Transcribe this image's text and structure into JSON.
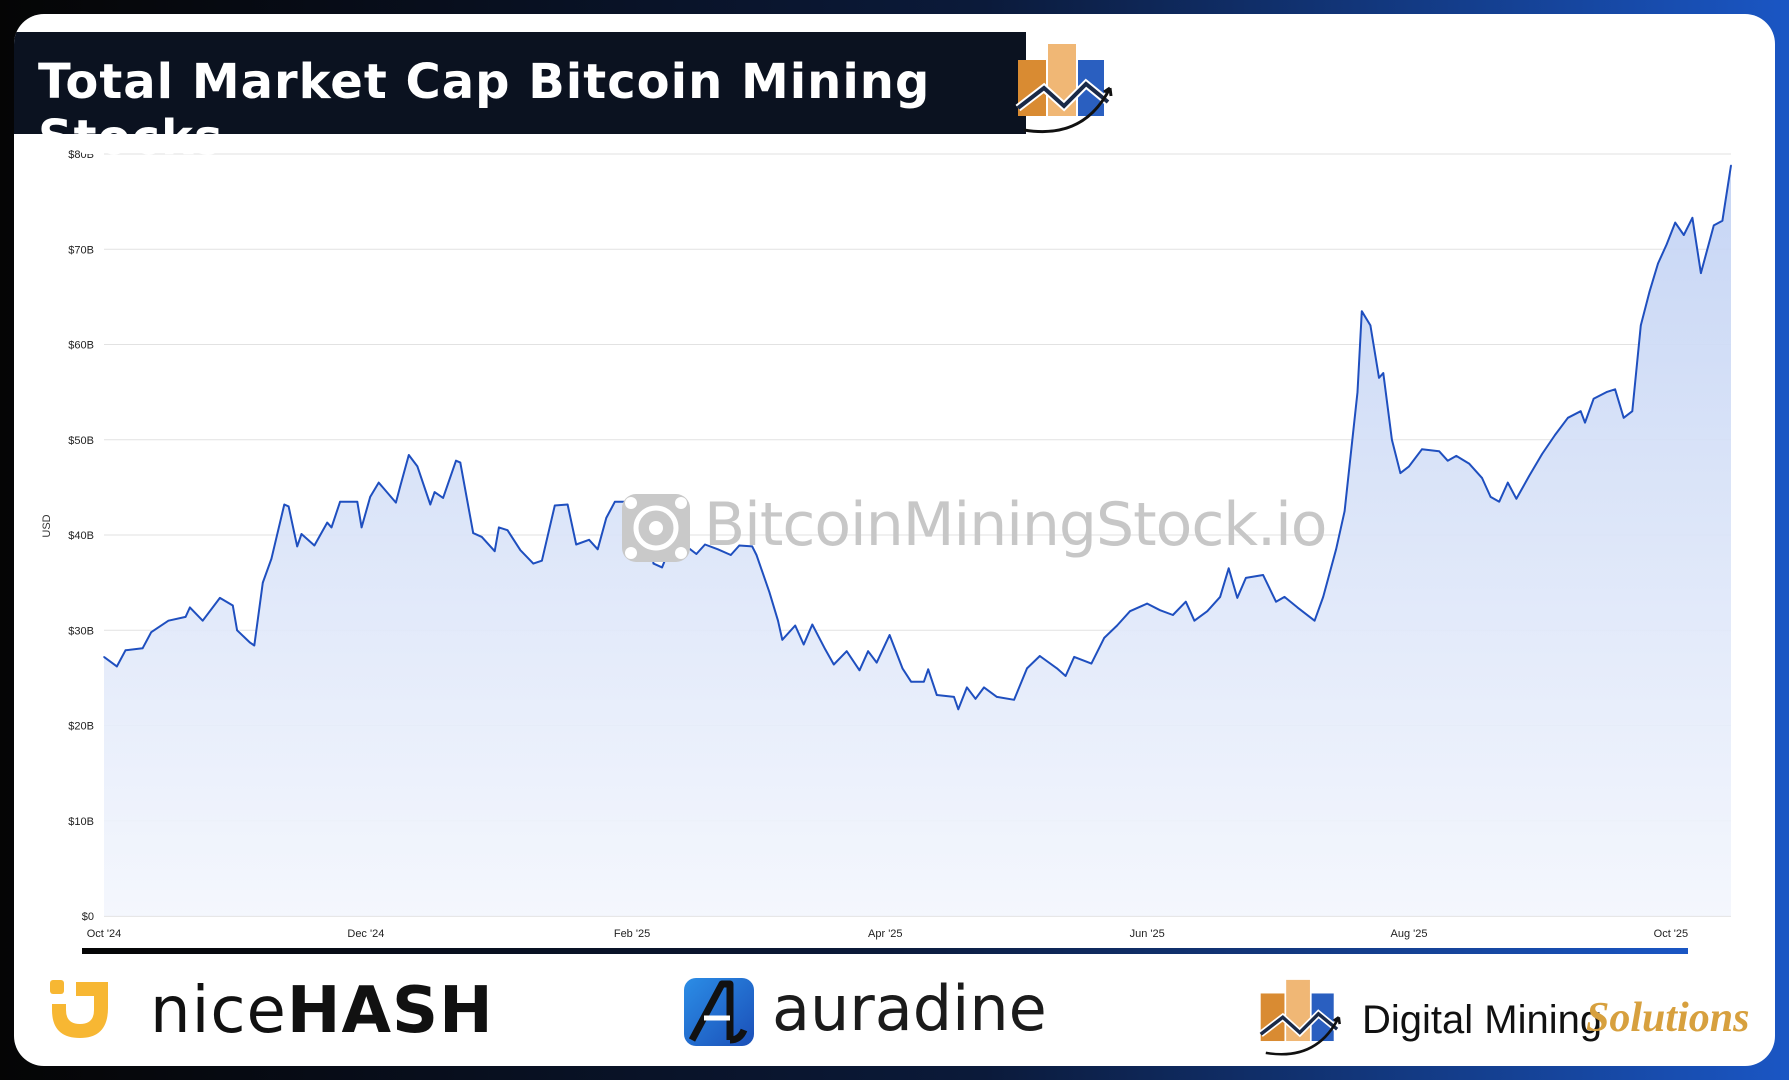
{
  "title": "Total Market Cap Bitcoin Mining Stocks",
  "watermark": "BitcoinMiningStock.io",
  "sponsors": {
    "nicehash_light": "nice",
    "nicehash_bold": "HASH",
    "auradine": "auradine",
    "dms_main": "Digital Mining",
    "dms_accent": "Solutions"
  },
  "colors": {
    "line": "#1f4fbf",
    "fill_top": "#c7d6f5",
    "grid": "#e2e2e2",
    "accent_orange": "#e09a3e",
    "accent_blue": "#2e64c8"
  },
  "chart_data": {
    "type": "area",
    "ylabel": "USD",
    "ylim": [
      0,
      80
    ],
    "yticks": [
      {
        "v": 0,
        "label": "$0"
      },
      {
        "v": 10,
        "label": "$10B"
      },
      {
        "v": 20,
        "label": "$20B"
      },
      {
        "v": 30,
        "label": "$30B"
      },
      {
        "v": 40,
        "label": "$40B"
      },
      {
        "v": 50,
        "label": "$50B"
      },
      {
        "v": 60,
        "label": "$60B"
      },
      {
        "v": 70,
        "label": "$70B"
      },
      {
        "v": 80,
        "label": "$80B"
      }
    ],
    "xticks": [
      {
        "date": "2024-10-01",
        "label": "Oct '24"
      },
      {
        "date": "2024-12-01",
        "label": "Dec '24"
      },
      {
        "date": "2025-02-01",
        "label": "Feb '25"
      },
      {
        "date": "2025-04-01",
        "label": "Apr '25"
      },
      {
        "date": "2025-06-01",
        "label": "Jun '25"
      },
      {
        "date": "2025-08-01",
        "label": "Aug '25"
      },
      {
        "date": "2025-10-01",
        "label": "Oct '25"
      }
    ],
    "xlim": [
      "2024-10-01",
      "2025-10-01"
    ],
    "grid": true,
    "series": [
      {
        "points": [
          [
            "2024-10-01",
            27.2
          ],
          [
            "2024-10-04",
            26.2
          ],
          [
            "2024-10-06",
            27.9
          ],
          [
            "2024-10-10",
            28.1
          ],
          [
            "2024-10-12",
            29.8
          ],
          [
            "2024-10-16",
            31.0
          ],
          [
            "2024-10-20",
            31.4
          ],
          [
            "2024-10-21",
            32.4
          ],
          [
            "2024-10-24",
            31.0
          ],
          [
            "2024-10-28",
            33.4
          ],
          [
            "2024-10-31",
            32.6
          ],
          [
            "2024-11-01",
            30.0
          ],
          [
            "2024-11-04",
            28.7
          ],
          [
            "2024-11-05",
            28.4
          ],
          [
            "2024-11-07",
            35.0
          ],
          [
            "2024-11-09",
            37.5
          ],
          [
            "2024-11-12",
            43.2
          ],
          [
            "2024-11-13",
            43.0
          ],
          [
            "2024-11-15",
            38.8
          ],
          [
            "2024-11-16",
            40.1
          ],
          [
            "2024-11-19",
            38.9
          ],
          [
            "2024-11-22",
            41.3
          ],
          [
            "2024-11-23",
            40.8
          ],
          [
            "2024-11-25",
            43.5
          ],
          [
            "2024-11-29",
            43.5
          ],
          [
            "2024-11-30",
            40.8
          ],
          [
            "2024-12-02",
            44.0
          ],
          [
            "2024-12-04",
            45.5
          ],
          [
            "2024-12-08",
            43.4
          ],
          [
            "2024-12-09",
            45.1
          ],
          [
            "2024-12-11",
            48.4
          ],
          [
            "2024-12-13",
            47.2
          ],
          [
            "2024-12-16",
            43.2
          ],
          [
            "2024-12-17",
            44.5
          ],
          [
            "2024-12-19",
            43.9
          ],
          [
            "2024-12-22",
            47.8
          ],
          [
            "2024-12-23",
            47.6
          ],
          [
            "2024-12-26",
            40.2
          ],
          [
            "2024-12-28",
            39.8
          ],
          [
            "2024-12-31",
            38.3
          ],
          [
            "2025-01-01",
            40.8
          ],
          [
            "2025-01-03",
            40.5
          ],
          [
            "2025-01-06",
            38.4
          ],
          [
            "2025-01-09",
            37.0
          ],
          [
            "2025-01-11",
            37.3
          ],
          [
            "2025-01-14",
            43.1
          ],
          [
            "2025-01-17",
            43.2
          ],
          [
            "2025-01-19",
            39.0
          ],
          [
            "2025-01-22",
            39.5
          ],
          [
            "2025-01-24",
            38.5
          ],
          [
            "2025-01-26",
            41.8
          ],
          [
            "2025-01-28",
            43.5
          ],
          [
            "2025-02-01",
            43.5
          ],
          [
            "2025-02-02",
            42.3
          ],
          [
            "2025-02-04",
            43.9
          ],
          [
            "2025-02-06",
            37.0
          ],
          [
            "2025-02-08",
            36.6
          ],
          [
            "2025-02-10",
            38.9
          ],
          [
            "2025-02-14",
            38.7
          ],
          [
            "2025-02-16",
            38.0
          ],
          [
            "2025-02-18",
            39.0
          ],
          [
            "2025-02-21",
            38.5
          ],
          [
            "2025-02-24",
            37.9
          ],
          [
            "2025-02-26",
            38.9
          ],
          [
            "2025-03-01",
            38.8
          ],
          [
            "2025-03-02",
            37.9
          ],
          [
            "2025-03-05",
            34.0
          ],
          [
            "2025-03-07",
            31.0
          ],
          [
            "2025-03-08",
            29.0
          ],
          [
            "2025-03-11",
            30.5
          ],
          [
            "2025-03-13",
            28.5
          ],
          [
            "2025-03-15",
            30.6
          ],
          [
            "2025-03-18",
            28.0
          ],
          [
            "2025-03-20",
            26.4
          ],
          [
            "2025-03-23",
            27.8
          ],
          [
            "2025-03-26",
            25.8
          ],
          [
            "2025-03-28",
            27.8
          ],
          [
            "2025-03-30",
            26.6
          ],
          [
            "2025-04-02",
            29.5
          ],
          [
            "2025-04-05",
            26.0
          ],
          [
            "2025-04-07",
            24.6
          ],
          [
            "2025-04-10",
            24.6
          ],
          [
            "2025-04-11",
            25.9
          ],
          [
            "2025-04-13",
            23.2
          ],
          [
            "2025-04-17",
            23.0
          ],
          [
            "2025-04-18",
            21.7
          ],
          [
            "2025-04-20",
            24.0
          ],
          [
            "2025-04-22",
            22.8
          ],
          [
            "2025-04-24",
            24.0
          ],
          [
            "2025-04-27",
            23.0
          ],
          [
            "2025-05-01",
            22.7
          ],
          [
            "2025-05-04",
            26.0
          ],
          [
            "2025-05-07",
            27.3
          ],
          [
            "2025-05-11",
            26.0
          ],
          [
            "2025-05-13",
            25.2
          ],
          [
            "2025-05-15",
            27.2
          ],
          [
            "2025-05-19",
            26.5
          ],
          [
            "2025-05-22",
            29.2
          ],
          [
            "2025-05-25",
            30.5
          ],
          [
            "2025-05-28",
            32.0
          ],
          [
            "2025-06-01",
            32.8
          ],
          [
            "2025-06-04",
            32.1
          ],
          [
            "2025-06-07",
            31.6
          ],
          [
            "2025-06-10",
            33.0
          ],
          [
            "2025-06-12",
            31.0
          ],
          [
            "2025-06-15",
            32.0
          ],
          [
            "2025-06-18",
            33.5
          ],
          [
            "2025-06-20",
            36.5
          ],
          [
            "2025-06-22",
            33.4
          ],
          [
            "2025-06-24",
            35.5
          ],
          [
            "2025-06-28",
            35.8
          ],
          [
            "2025-07-01",
            33.0
          ],
          [
            "2025-07-03",
            33.5
          ],
          [
            "2025-07-06",
            32.4
          ],
          [
            "2025-07-10",
            31.0
          ],
          [
            "2025-07-12",
            33.5
          ],
          [
            "2025-07-15",
            38.5
          ],
          [
            "2025-07-17",
            42.5
          ],
          [
            "2025-07-20",
            55.0
          ],
          [
            "2025-07-21",
            63.5
          ],
          [
            "2025-07-23",
            62.0
          ],
          [
            "2025-07-25",
            56.5
          ],
          [
            "2025-07-26",
            57.0
          ],
          [
            "2025-07-28",
            50.0
          ],
          [
            "2025-07-30",
            46.5
          ],
          [
            "2025-08-01",
            47.2
          ],
          [
            "2025-08-04",
            49.0
          ],
          [
            "2025-08-08",
            48.8
          ],
          [
            "2025-08-10",
            47.8
          ],
          [
            "2025-08-12",
            48.3
          ],
          [
            "2025-08-15",
            47.5
          ],
          [
            "2025-08-18",
            46.0
          ],
          [
            "2025-08-20",
            44.0
          ],
          [
            "2025-08-22",
            43.5
          ],
          [
            "2025-08-24",
            45.5
          ],
          [
            "2025-08-26",
            43.8
          ],
          [
            "2025-08-29",
            46.2
          ],
          [
            "2025-09-01",
            48.5
          ],
          [
            "2025-09-04",
            50.5
          ],
          [
            "2025-09-07",
            52.3
          ],
          [
            "2025-09-10",
            53.0
          ],
          [
            "2025-09-11",
            51.8
          ],
          [
            "2025-09-13",
            54.3
          ],
          [
            "2025-09-16",
            55.0
          ],
          [
            "2025-09-18",
            55.3
          ],
          [
            "2025-09-20",
            52.3
          ],
          [
            "2025-09-22",
            53.0
          ],
          [
            "2025-09-24",
            62.0
          ],
          [
            "2025-09-26",
            65.5
          ],
          [
            "2025-09-28",
            68.5
          ],
          [
            "2025-09-30",
            70.5
          ],
          [
            "2025-10-02",
            72.8
          ],
          [
            "2025-10-04",
            71.5
          ],
          [
            "2025-10-06",
            73.3
          ],
          [
            "2025-10-08",
            67.5
          ],
          [
            "2025-10-11",
            72.5
          ],
          [
            "2025-10-13",
            73.0
          ],
          [
            "2025-10-15",
            78.8
          ]
        ]
      }
    ]
  }
}
